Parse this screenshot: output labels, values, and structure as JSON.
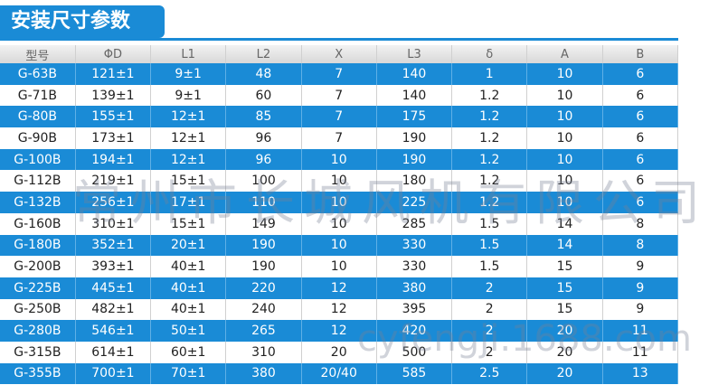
{
  "header": {
    "title": "安装尺寸参数"
  },
  "table": {
    "columns": [
      "型号",
      "ΦD",
      "L1",
      "L2",
      "X",
      "L3",
      "δ",
      "A",
      "B"
    ],
    "rows": [
      [
        "G-63B",
        "121±1",
        "9±1",
        "48",
        "7",
        "140",
        "1",
        "10",
        "6"
      ],
      [
        "G-71B",
        "139±1",
        "9±1",
        "60",
        "7",
        "140",
        "1.2",
        "10",
        "6"
      ],
      [
        "G-80B",
        "155±1",
        "12±1",
        "85",
        "7",
        "175",
        "1.2",
        "10",
        "6"
      ],
      [
        "G-90B",
        "173±1",
        "12±1",
        "96",
        "7",
        "190",
        "1.2",
        "10",
        "6"
      ],
      [
        "G-100B",
        "194±1",
        "12±1",
        "96",
        "10",
        "190",
        "1.2",
        "10",
        "6"
      ],
      [
        "G-112B",
        "219±1",
        "15±1",
        "100",
        "10",
        "180",
        "1.2",
        "10",
        "6"
      ],
      [
        "G-132B",
        "256±1",
        "17±1",
        "110",
        "10",
        "225",
        "1.2",
        "10",
        "6"
      ],
      [
        "G-160B",
        "310±1",
        "15±1",
        "149",
        "10",
        "285",
        "1.5",
        "14",
        "8"
      ],
      [
        "G-180B",
        "352±1",
        "20±1",
        "190",
        "10",
        "330",
        "1.5",
        "14",
        "8"
      ],
      [
        "G-200B",
        "393±1",
        "40±1",
        "190",
        "10",
        "330",
        "1.5",
        "15",
        "9"
      ],
      [
        "G-225B",
        "445±1",
        "40±1",
        "220",
        "12",
        "380",
        "2",
        "15",
        "9"
      ],
      [
        "G-250B",
        "482±1",
        "40±1",
        "240",
        "12",
        "395",
        "2",
        "15",
        "9"
      ],
      [
        "G-280B",
        "546±1",
        "50±1",
        "265",
        "12",
        "420",
        "2",
        "20",
        "11"
      ],
      [
        "G-315B",
        "614±1",
        "60±1",
        "310",
        "20",
        "500",
        "2",
        "20",
        "11"
      ],
      [
        "G-355B",
        "700±1",
        "70±1",
        "380",
        "20/40",
        "585",
        "2.5",
        "20",
        "13"
      ]
    ]
  },
  "watermark": {
    "company": "常州市长城风机有限公司",
    "site": "cyfengji.1688.com"
  }
}
